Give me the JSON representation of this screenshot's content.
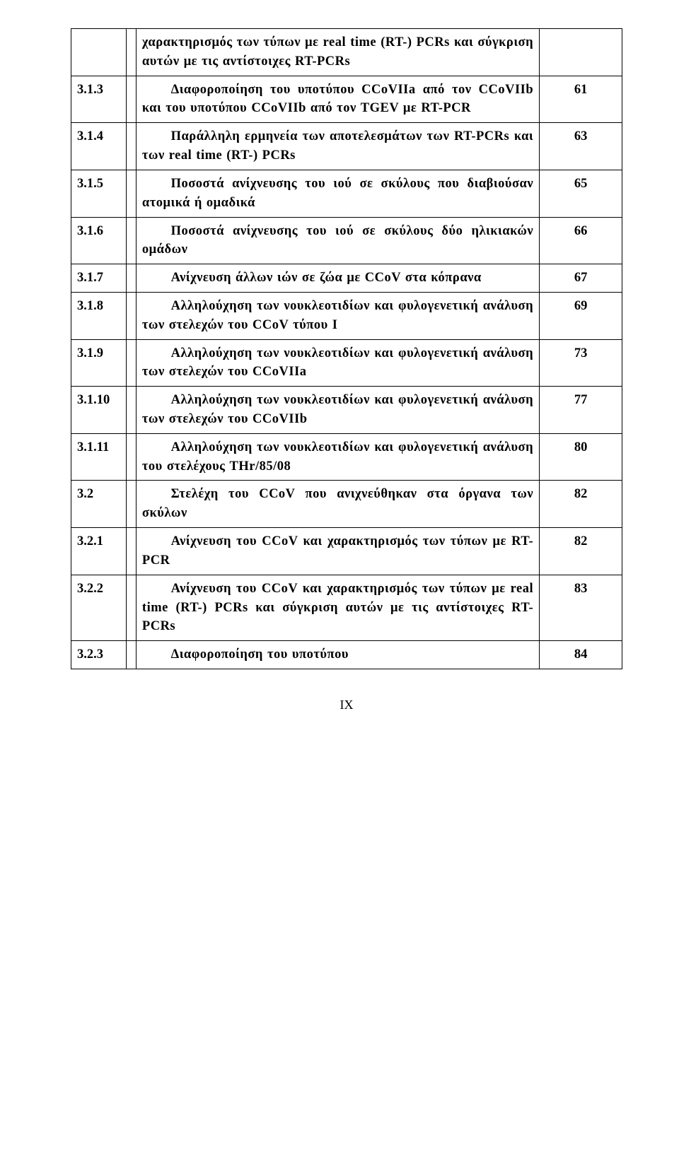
{
  "rows": [
    {
      "num": "",
      "desc": "χαρακτηρισμός των τύπων με real time (RT-) PCRs και σύγκριση αυτών με τις αντίστοιχες RT-PCRs",
      "page": "",
      "indent": false
    },
    {
      "num": "3.1.3",
      "desc": "Διαφοροποίηση του υποτύπου CCoVIIa από τον CCoVIIb και του υποτύπου CCoVIIb από τον TGEV με RT-PCR",
      "page": "61",
      "indent": true
    },
    {
      "num": "3.1.4",
      "desc": "Παράλληλη ερμηνεία των αποτελεσμάτων των RT-PCRs και των real time (RT-) PCRs",
      "page": "63",
      "indent": true
    },
    {
      "num": "3.1.5",
      "desc": "Ποσοστά ανίχνευσης του ιού σε σκύλους που διαβιούσαν ατομικά ή ομαδικά",
      "page": "65",
      "indent": true
    },
    {
      "num": "3.1.6",
      "desc": "Ποσοστά ανίχνευσης του ιού σε σκύλους δύο ηλικιακών ομάδων",
      "page": "66",
      "indent": true
    },
    {
      "num": "3.1.7",
      "desc": "Ανίχνευση άλλων ιών σε ζώα με CCoV στα κόπρανα",
      "page": "67",
      "indent": true
    },
    {
      "num": "3.1.8",
      "desc": "Αλληλούχηση των νουκλεοτιδίων και φυλογενετική ανάλυση των στελεχών του CCoV τύπου I",
      "page": "69",
      "indent": true
    },
    {
      "num": "3.1.9",
      "desc": "Αλληλούχηση των νουκλεοτιδίων και φυλογενετική ανάλυση των στελεχών του CCoVIIa",
      "page": "73",
      "indent": true
    },
    {
      "num": "3.1.10",
      "desc": "Αλληλούχηση των νουκλεοτιδίων και φυλογενετική ανάλυση των στελεχών του CCoVIIb",
      "page": "77",
      "indent": true
    },
    {
      "num": "3.1.11",
      "desc": "Αλληλούχηση των νουκλεοτιδίων και φυλογενετική ανάλυση του στελέχους THr/85/08",
      "page": "80",
      "indent": true
    },
    {
      "num": "3.2",
      "desc": "Στελέχη του CCoV που ανιχνεύθηκαν στα όργανα των σκύλων",
      "page": "82",
      "indent": true
    },
    {
      "num": "3.2.1",
      "desc": "Ανίχνευση του CCoV και χαρακτηρισμός των τύπων με RT-PCR",
      "page": "82",
      "indent": true
    },
    {
      "num": "3.2.2",
      "desc": "Ανίχνευση του CCoV και χαρακτηρισμός των τύπων με real time (RT-) PCRs και σύγκριση αυτών με τις αντίστοιχες RT-PCRs",
      "page": "83",
      "indent": true
    },
    {
      "num": "3.2.3",
      "desc": "Διαφοροποίηση του υποτύπου",
      "page": "84",
      "indent": true
    }
  ],
  "footer": "IX"
}
